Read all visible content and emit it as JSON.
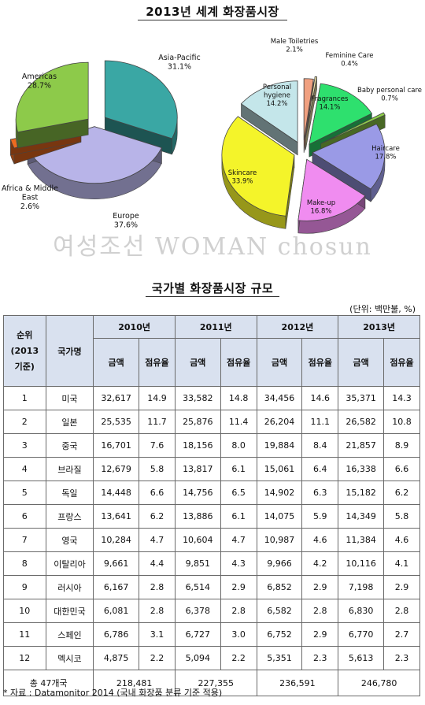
{
  "page": {
    "title": "2013년 세계 화장품시장",
    "watermark": "여성조선 WOMAN chosun",
    "table_title": "국가별 화장품시장 규모",
    "unit": "(단위: 백만불, %)",
    "source": "* 자료 : Datamonitor 2014 (국내 화장품 분류 기준 적용)"
  },
  "chart_data": [
    {
      "type": "pie",
      "slices": [
        {
          "label": "Asia-Pacific",
          "value": 31.1,
          "color": "#3aa7a4"
        },
        {
          "label": "Europe",
          "value": 37.6,
          "color": "#b8b4e8"
        },
        {
          "label": "Africa & Middle East",
          "value": 2.6,
          "color": "#ef6b1f"
        },
        {
          "label": "Americas",
          "value": 28.7,
          "color": "#8dca4a"
        }
      ],
      "labels": [
        {
          "name": "Asia-Pacific",
          "pct": "31.1%"
        },
        {
          "name": "Europe",
          "pct": "37.6%"
        },
        {
          "name": "Africa & Middle East",
          "pct": "2.6%"
        },
        {
          "name": "Americas",
          "pct": "28.7%"
        }
      ]
    },
    {
      "type": "pie",
      "slices": [
        {
          "label": "Male Toiletries",
          "value": 2.1,
          "color": "#f0a080"
        },
        {
          "label": "Feminine Care",
          "value": 0.4,
          "color": "#f4e8a8"
        },
        {
          "label": "Fragrances",
          "value": 14.1,
          "color": "#2ee06e"
        },
        {
          "label": "Baby personal care",
          "value": 0.7,
          "color": "#8fd04a"
        },
        {
          "label": "Haircare",
          "value": 17.8,
          "color": "#9a9ae6"
        },
        {
          "label": "Make-up",
          "value": 16.8,
          "color": "#f08cf0"
        },
        {
          "label": "Skincare",
          "value": 33.9,
          "color": "#f4f42a"
        },
        {
          "label": "Personal hygiene",
          "value": 14.2,
          "color": "#c4e6ea"
        }
      ],
      "labels": [
        {
          "name": "Male Toiletries",
          "pct": "2.1%"
        },
        {
          "name": "Feminine Care",
          "pct": "0.4%"
        },
        {
          "name": "Fragrances",
          "pct": "14.1%"
        },
        {
          "name": "Baby personal care",
          "pct": "0.7%"
        },
        {
          "name": "Haircare",
          "pct": "17.8%"
        },
        {
          "name": "Make-up",
          "pct": "16.8%"
        },
        {
          "name": "Skincare",
          "pct": "33.9%"
        },
        {
          "name": "Personal hygiene",
          "pct": "14.2%"
        }
      ]
    },
    {
      "type": "table",
      "headers": {
        "rank": [
          "순위",
          "(2013",
          "기준)"
        ],
        "country": "국가명",
        "years": [
          "2010년",
          "2011년",
          "2012년",
          "2013년"
        ],
        "amount": "금액",
        "share": "점유율"
      },
      "rows": [
        {
          "rank": "1",
          "country": "미국",
          "values": [
            "32,617",
            "14.9",
            "33,582",
            "14.8",
            "34,456",
            "14.6",
            "35,371",
            "14.3"
          ]
        },
        {
          "rank": "2",
          "country": "일본",
          "values": [
            "25,535",
            "11.7",
            "25,876",
            "11.4",
            "26,204",
            "11.1",
            "26,582",
            "10.8"
          ]
        },
        {
          "rank": "3",
          "country": "중국",
          "values": [
            "16,701",
            "7.6",
            "18,156",
            "8.0",
            "19,884",
            "8.4",
            "21,857",
            "8.9"
          ]
        },
        {
          "rank": "4",
          "country": "브라질",
          "values": [
            "12,679",
            "5.8",
            "13,817",
            "6.1",
            "15,061",
            "6.4",
            "16,338",
            "6.6"
          ]
        },
        {
          "rank": "5",
          "country": "독일",
          "values": [
            "14,448",
            "6.6",
            "14,756",
            "6.5",
            "14,902",
            "6.3",
            "15,182",
            "6.2"
          ]
        },
        {
          "rank": "6",
          "country": "프랑스",
          "values": [
            "13,641",
            "6.2",
            "13,886",
            "6.1",
            "14,075",
            "5.9",
            "14,349",
            "5.8"
          ]
        },
        {
          "rank": "7",
          "country": "영국",
          "values": [
            "10,284",
            "4.7",
            "10,604",
            "4.7",
            "10,987",
            "4.6",
            "11,384",
            "4.6"
          ]
        },
        {
          "rank": "8",
          "country": "이탈리아",
          "values": [
            "9,661",
            "4.4",
            "9,851",
            "4.3",
            "9,966",
            "4.2",
            "10,116",
            "4.1"
          ]
        },
        {
          "rank": "9",
          "country": "러시아",
          "values": [
            "6,167",
            "2.8",
            "6,514",
            "2.9",
            "6,852",
            "2.9",
            "7,198",
            "2.9"
          ]
        },
        {
          "rank": "10",
          "country": "대한민국",
          "values": [
            "6,081",
            "2.8",
            "6,378",
            "2.8",
            "6,582",
            "2.8",
            "6,830",
            "2.8"
          ]
        },
        {
          "rank": "11",
          "country": "스페인",
          "values": [
            "6,786",
            "3.1",
            "6,727",
            "3.0",
            "6,752",
            "2.9",
            "6,770",
            "2.7"
          ]
        },
        {
          "rank": "12",
          "country": "멕시코",
          "values": [
            "4,875",
            "2.2",
            "5,094",
            "2.2",
            "5,351",
            "2.3",
            "5,613",
            "2.3"
          ]
        }
      ],
      "total": {
        "label": "총 47개국",
        "values": [
          "218,481",
          "227,355",
          "236,591",
          "246,780"
        ]
      }
    }
  ]
}
